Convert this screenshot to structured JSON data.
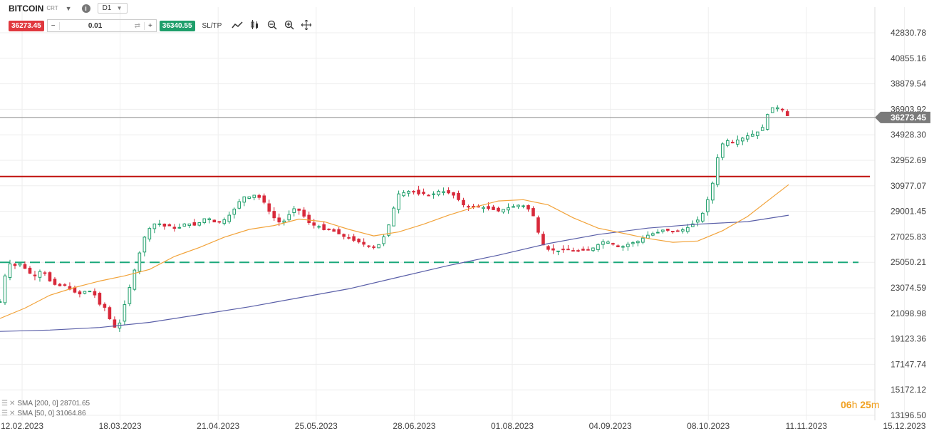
{
  "toolbar": {
    "symbol": "BITCOIN",
    "symbol_sub": "CRT",
    "timeframe": "D1",
    "sell_price": "36273.45",
    "quantity": "0.01",
    "buy_price": "36340.55",
    "sltp_label": "SL/TP",
    "icons": [
      "chevron-down-icon",
      "info-icon",
      "line-chart-icon",
      "candles-icon",
      "zoom-out-icon",
      "zoom-in-icon",
      "move-icon"
    ]
  },
  "indicators": [
    {
      "label": "SMA [200, 0] 28701.65",
      "color": "#5a5fa8"
    },
    {
      "label": "SMA [50, 0] 31064.86",
      "color": "#f2a33a"
    }
  ],
  "countdown": {
    "hours": "06",
    "h": "h",
    "minutes": "25",
    "m": "m"
  },
  "chart_data": {
    "type": "candlestick",
    "y_ticks": [
      "42830.78",
      "40855.16",
      "38879.54",
      "36903.92",
      "34928.30",
      "32952.69",
      "30977.07",
      "29001.45",
      "27025.83",
      "25050.21",
      "23074.59",
      "21098.98",
      "19123.36",
      "17147.74",
      "15172.12",
      "13196.50"
    ],
    "x_ticks": [
      "12.02.2023",
      "18.03.2023",
      "21.04.2023",
      "25.05.2023",
      "28.06.2023",
      "01.08.2023",
      "04.09.2023",
      "08.10.2023",
      "11.11.2023",
      "15.12.2023"
    ],
    "current_price": "36273.45",
    "levels": [
      {
        "value": 31700,
        "style": "solid",
        "color": "#c0100c"
      },
      {
        "value": 25050,
        "style": "dashed",
        "color": "#1aa87a"
      }
    ],
    "colors": {
      "up": "#1e9e6a",
      "down": "#d8293a",
      "sma200": "#5a5fa8",
      "sma50": "#f2a33a",
      "grid": "#eeeeee"
    },
    "close_path": [
      [
        0,
        22000
      ],
      [
        6,
        25000
      ],
      [
        12,
        24800
      ],
      [
        17,
        25000
      ],
      [
        22,
        24300
      ],
      [
        28,
        24000
      ],
      [
        34,
        24500
      ],
      [
        40,
        23600
      ],
      [
        46,
        23200
      ],
      [
        52,
        23300
      ],
      [
        58,
        22800
      ],
      [
        64,
        22600
      ],
      [
        70,
        22900
      ],
      [
        75,
        22700
      ],
      [
        80,
        21800
      ],
      [
        85,
        21500
      ],
      [
        89,
        20400
      ],
      [
        93,
        19900
      ],
      [
        97,
        20500
      ],
      [
        101,
        22200
      ],
      [
        105,
        23400
      ],
      [
        109,
        24800
      ],
      [
        113,
        26100
      ],
      [
        117,
        27300
      ],
      [
        121,
        27800
      ],
      [
        125,
        28100
      ],
      [
        129,
        28000
      ],
      [
        133,
        27800
      ],
      [
        137,
        27900
      ],
      [
        141,
        27600
      ],
      [
        145,
        27800
      ],
      [
        149,
        28100
      ],
      [
        153,
        28000
      ],
      [
        157,
        27900
      ],
      [
        161,
        28200
      ],
      [
        165,
        28500
      ],
      [
        169,
        28400
      ],
      [
        173,
        28100
      ],
      [
        177,
        28200
      ],
      [
        181,
        28400
      ],
      [
        185,
        28800
      ],
      [
        189,
        29300
      ],
      [
        193,
        29900
      ],
      [
        197,
        30200
      ],
      [
        201,
        30100
      ],
      [
        205,
        30300
      ],
      [
        209,
        30000
      ],
      [
        213,
        29600
      ],
      [
        217,
        28800
      ],
      [
        221,
        28400
      ],
      [
        225,
        28100
      ],
      [
        229,
        28300
      ],
      [
        233,
        28900
      ],
      [
        237,
        29300
      ],
      [
        241,
        29000
      ],
      [
        245,
        28500
      ],
      [
        249,
        28000
      ],
      [
        253,
        27900
      ],
      [
        257,
        27800
      ],
      [
        261,
        27500
      ],
      [
        265,
        27600
      ],
      [
        269,
        27400
      ],
      [
        273,
        27200
      ],
      [
        277,
        27000
      ],
      [
        281,
        26900
      ],
      [
        285,
        26700
      ],
      [
        289,
        26600
      ],
      [
        293,
        26400
      ],
      [
        297,
        26300
      ],
      [
        301,
        26200
      ],
      [
        305,
        26500
      ],
      [
        309,
        27200
      ],
      [
        313,
        28200
      ],
      [
        317,
        29600
      ],
      [
        321,
        30600
      ],
      [
        325,
        30400
      ],
      [
        329,
        30600
      ],
      [
        333,
        30500
      ],
      [
        337,
        30300
      ],
      [
        341,
        30400
      ],
      [
        345,
        30200
      ],
      [
        349,
        30400
      ],
      [
        353,
        30600
      ],
      [
        357,
        30500
      ],
      [
        361,
        30400
      ],
      [
        365,
        30200
      ],
      [
        369,
        29800
      ],
      [
        373,
        29400
      ],
      [
        377,
        29300
      ],
      [
        381,
        29400
      ],
      [
        385,
        29300
      ],
      [
        389,
        29300
      ],
      [
        393,
        29200
      ],
      [
        397,
        29100
      ],
      [
        401,
        29000
      ],
      [
        405,
        29200
      ],
      [
        409,
        29300
      ],
      [
        413,
        29400
      ],
      [
        417,
        29500
      ],
      [
        421,
        29400
      ],
      [
        425,
        29100
      ],
      [
        429,
        28500
      ],
      [
        433,
        27000
      ],
      [
        437,
        26200
      ],
      [
        441,
        26000
      ],
      [
        445,
        26000
      ],
      [
        449,
        25900
      ],
      [
        453,
        26100
      ],
      [
        457,
        26000
      ],
      [
        461,
        25900
      ],
      [
        465,
        25950
      ],
      [
        469,
        26000
      ],
      [
        473,
        26050
      ],
      [
        477,
        26200
      ],
      [
        481,
        26500
      ],
      [
        485,
        26700
      ],
      [
        489,
        26600
      ],
      [
        493,
        26400
      ],
      [
        497,
        26200
      ],
      [
        501,
        26300
      ],
      [
        505,
        26500
      ],
      [
        509,
        26600
      ],
      [
        513,
        26700
      ],
      [
        517,
        27000
      ],
      [
        521,
        27200
      ],
      [
        525,
        27300
      ],
      [
        529,
        27400
      ],
      [
        533,
        27600
      ],
      [
        537,
        27500
      ],
      [
        541,
        27400
      ],
      [
        545,
        27500
      ],
      [
        549,
        27600
      ],
      [
        553,
        27800
      ],
      [
        557,
        28100
      ],
      [
        561,
        28400
      ],
      [
        565,
        29000
      ],
      [
        569,
        30200
      ],
      [
        573,
        31500
      ],
      [
        577,
        33700
      ],
      [
        581,
        34400
      ],
      [
        585,
        34500
      ],
      [
        589,
        34300
      ],
      [
        593,
        34600
      ],
      [
        597,
        34700
      ],
      [
        601,
        34900
      ],
      [
        605,
        35000
      ],
      [
        609,
        35200
      ],
      [
        613,
        35600
      ],
      [
        617,
        36800
      ],
      [
        621,
        37100
      ],
      [
        625,
        37000
      ],
      [
        629,
        36800
      ],
      [
        633,
        36273
      ]
    ],
    "sma200_path": [
      [
        0,
        19700
      ],
      [
        40,
        19800
      ],
      [
        80,
        20000
      ],
      [
        120,
        20400
      ],
      [
        160,
        21000
      ],
      [
        200,
        21600
      ],
      [
        240,
        22300
      ],
      [
        280,
        23000
      ],
      [
        320,
        23900
      ],
      [
        360,
        24800
      ],
      [
        400,
        25600
      ],
      [
        440,
        26500
      ],
      [
        480,
        27200
      ],
      [
        520,
        27700
      ],
      [
        560,
        28000
      ],
      [
        600,
        28200
      ],
      [
        633,
        28700
      ]
    ],
    "sma50_path": [
      [
        0,
        20700
      ],
      [
        20,
        21500
      ],
      [
        40,
        22500
      ],
      [
        60,
        23100
      ],
      [
        80,
        23600
      ],
      [
        100,
        24000
      ],
      [
        120,
        24500
      ],
      [
        140,
        25500
      ],
      [
        160,
        26200
      ],
      [
        180,
        27000
      ],
      [
        200,
        27600
      ],
      [
        220,
        27900
      ],
      [
        240,
        28400
      ],
      [
        260,
        28200
      ],
      [
        280,
        27600
      ],
      [
        300,
        27100
      ],
      [
        320,
        27400
      ],
      [
        340,
        28000
      ],
      [
        360,
        28700
      ],
      [
        380,
        29300
      ],
      [
        400,
        29800
      ],
      [
        420,
        29900
      ],
      [
        440,
        29500
      ],
      [
        460,
        28500
      ],
      [
        480,
        27700
      ],
      [
        500,
        27300
      ],
      [
        520,
        26900
      ],
      [
        540,
        26600
      ],
      [
        560,
        26700
      ],
      [
        580,
        27500
      ],
      [
        600,
        28600
      ],
      [
        620,
        30100
      ],
      [
        633,
        31064
      ]
    ]
  }
}
